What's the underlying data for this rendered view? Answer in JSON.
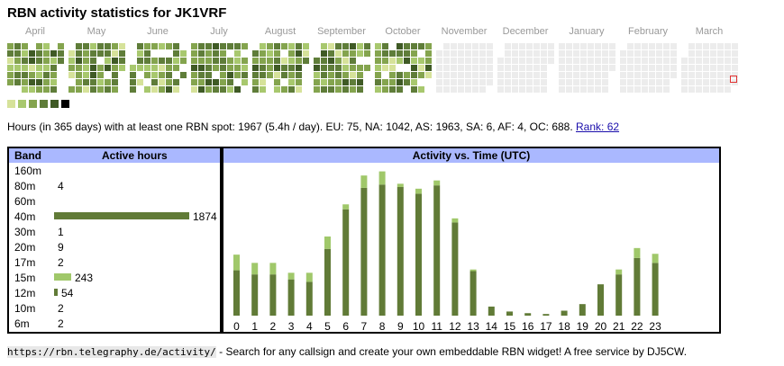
{
  "title": "RBN activity statistics for JK1VRF",
  "colors": {
    "level1": "#d6e29a",
    "level2": "#a8c86e",
    "level3": "#84a44e",
    "level4": "#5f7d39",
    "level5": "#3f5a25",
    "level6": "#000000",
    "empty": "#ececec",
    "today_marker": "#e03030",
    "header_bg": "#aab8ff",
    "bar_primary": "#617b37",
    "bar_secondary": "#a0c86a"
  },
  "heatmap": {
    "months": [
      "April",
      "May",
      "June",
      "July",
      "August",
      "September",
      "October",
      "November",
      "December",
      "January",
      "February",
      "March"
    ],
    "legend_levels": [
      "level1",
      "level2",
      "level3",
      "level4",
      "level5",
      "level6"
    ]
  },
  "stats": {
    "text": "Hours (in 365 days) with at least one RBN spot: 1967 (5.4h / day). EU: 75, NA: 1042, AS: 1963, SA: 6, AF: 4, OC: 688.",
    "rank_link": "Rank: 62"
  },
  "band_table": {
    "col_band": "Band",
    "col_hours": "Active hours",
    "rows": [
      {
        "band": "160m",
        "value": "",
        "color": ""
      },
      {
        "band": "80m",
        "value": "4",
        "color": ""
      },
      {
        "band": "60m",
        "value": "",
        "color": ""
      },
      {
        "band": "40m",
        "value": "1874",
        "color": "#617b37"
      },
      {
        "band": "30m",
        "value": "1",
        "color": ""
      },
      {
        "band": "20m",
        "value": "9",
        "color": ""
      },
      {
        "band": "17m",
        "value": "2",
        "color": ""
      },
      {
        "band": "15m",
        "value": "243",
        "color": "#a0c86a"
      },
      {
        "band": "12m",
        "value": "54",
        "color": "#617b37"
      },
      {
        "band": "10m",
        "value": "2",
        "color": ""
      },
      {
        "band": "6m",
        "value": "2",
        "color": ""
      }
    ]
  },
  "chart_data": {
    "type": "bar",
    "title": "Activity vs. Time (UTC)",
    "categories": [
      "0",
      "1",
      "2",
      "3",
      "4",
      "5",
      "6",
      "7",
      "8",
      "9",
      "10",
      "11",
      "12",
      "13",
      "14",
      "15",
      "16",
      "17",
      "18",
      "19",
      "20",
      "21",
      "22",
      "23"
    ],
    "series": [
      {
        "values": [
          55,
          50,
          50,
          44,
          41,
          81,
          129,
          155,
          159,
          156,
          148,
          158,
          113,
          54,
          11,
          5,
          3,
          2,
          6,
          14,
          38,
          50,
          70,
          64
        ]
      },
      {
        "values": [
          19,
          14,
          14,
          8,
          11,
          15,
          6,
          15,
          16,
          4,
          6,
          6,
          5,
          2,
          0,
          0,
          0,
          0,
          0,
          0,
          0,
          6,
          12,
          11
        ]
      }
    ],
    "ylim": [
      0,
      180
    ]
  },
  "footer": {
    "url": "https://rbn.telegraphy.de/activity/",
    "text": " - Search for any callsign and create your own embeddable RBN widget! A free service by DJ5CW."
  }
}
